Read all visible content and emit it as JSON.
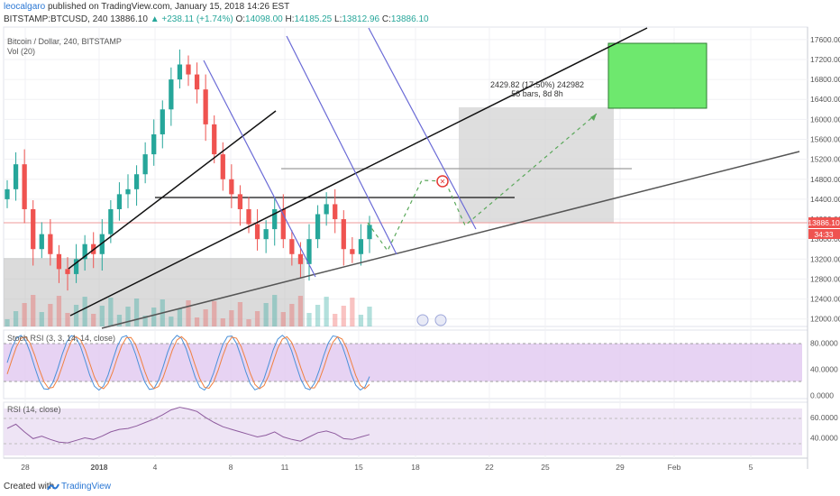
{
  "header": {
    "author": "leocalgaro",
    "published_text": "published on TradingView.com, January 15, 2018 14:26 EST",
    "symbol": "BITSTAMP:BTCUSD, 240",
    "last": "13886.10",
    "change": "▲ +238.11 (+1.74%)",
    "o_label": "O:",
    "o_value": "14098.00",
    "h_label": "H:",
    "h_value": "14185.25",
    "l_label": "L:",
    "l_value": "13812.96",
    "c_label": "C:",
    "c_value": "13886.10"
  },
  "legend": {
    "title": "Bitcoin / Dollar, 240, BITSTAMP",
    "vol": "Vol (20)",
    "stoch": "Stoch RSI (3, 3, 14, 14, close)",
    "rsi": "RSI (14, close)"
  },
  "measure": {
    "line1": "2429.82 (17.50%) 242982",
    "line2": "58 bars, 8d 8h"
  },
  "price_tag": "13886.10",
  "countdown": "34:33",
  "footer": {
    "created": "Created with",
    "brand": "TradingView"
  },
  "chart_data": {
    "type": "candlestick",
    "colors": {
      "up": "#26a69a",
      "down": "#ef5350",
      "rsi": "#8e5b9e",
      "stoch_k": "#4a90d9",
      "stoch_d": "#f08040",
      "band": "#e1c8f0",
      "target_box": "#6ee86e"
    },
    "price_axis": {
      "ticks": [
        "17600.00",
        "17200.00",
        "16800.00",
        "16400.00",
        "16000.00",
        "15600.00",
        "15200.00",
        "14800.00",
        "14400.00",
        "14000.00",
        "13600.00",
        "13200.00",
        "12800.00",
        "12400.00",
        "12000.00"
      ],
      "range": [
        11850,
        17850
      ]
    },
    "stoch_axis": {
      "ticks": [
        "80.0000",
        "40.0000",
        "0.0000"
      ],
      "range": [
        -5,
        100
      ]
    },
    "rsi_axis": {
      "ticks": [
        "60.0000",
        "40.0000"
      ],
      "range": [
        20,
        75
      ]
    },
    "time_axis": {
      "labels": [
        "28",
        "2018",
        "4",
        "8",
        "11",
        "15",
        "18",
        "22",
        "25",
        "29",
        "Feb",
        "5"
      ]
    },
    "close_series": [
      14600,
      15100,
      14200,
      13400,
      13700,
      13300,
      13000,
      12900,
      13200,
      13500,
      13300,
      13700,
      14200,
      14500,
      14600,
      14900,
      15300,
      15700,
      16200,
      16800,
      17100,
      16900,
      16600,
      15900,
      15300,
      14800,
      14500,
      14200,
      13900,
      13600,
      13800,
      14200,
      13600,
      13300,
      13100,
      13600,
      14100,
      14300,
      14000,
      13400,
      13300,
      13600,
      13886.1
    ],
    "annotations": [
      "descending channel",
      "ascending support lines",
      "projection target box",
      "measured move range"
    ]
  }
}
